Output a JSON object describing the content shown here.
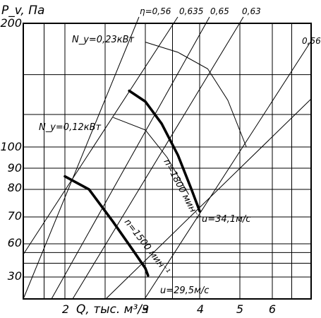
{
  "chart_data": {
    "type": "line",
    "ylabel": "P_v, Па",
    "xlabel": "Q, тыс. м³/ч",
    "yscale": "log",
    "xscale": "log",
    "ylim": [
      25,
      200
    ],
    "xlim": [
      1.0,
      8.0
    ],
    "grid": true,
    "y_ticks": [
      "30",
      "60",
      "70",
      "80",
      "90",
      "100",
      "200"
    ],
    "x_ticks": [
      "2",
      "3",
      "4",
      "5",
      "6"
    ],
    "efficiency_lines": [
      {
        "label": "η=0,56",
        "value": 0.56
      },
      {
        "label": "0,635",
        "value": 0.635
      },
      {
        "label": "0,65",
        "value": 0.65
      },
      {
        "label": "0,63",
        "value": 0.63
      },
      {
        "label": "0,56",
        "value": 0.56
      }
    ],
    "series": [
      {
        "name": "n=1800 мин⁻¹",
        "x": [
          2.8,
          3.0,
          3.3,
          3.6,
          3.85,
          4.0
        ],
        "y": [
          137,
          129,
          114,
          96,
          80,
          72
        ]
      },
      {
        "name": "n=1500 мин⁻¹",
        "x": [
          2.0,
          2.3,
          2.6,
          2.85,
          3.0,
          3.05
        ],
        "y": [
          86,
          80,
          68,
          52,
          36,
          31
        ]
      },
      {
        "name": "N_у=0,23кВт",
        "x": [
          3.0,
          3.6,
          4.2,
          4.7,
          5.2
        ],
        "y": [
          180,
          170,
          155,
          130,
          100
        ]
      },
      {
        "name": "N_у=0,12кВт",
        "x": [
          2.6,
          3.0,
          3.4,
          3.8
        ],
        "y": [
          118,
          110,
          95,
          78
        ]
      }
    ],
    "annotations": [
      "N_у=0,23кВт",
      "N_у=0,12кВт",
      "n=1800 мин⁻¹",
      "n=1500 мин⁻¹",
      "u=34,1м/с",
      "u=29,5м/с"
    ]
  }
}
